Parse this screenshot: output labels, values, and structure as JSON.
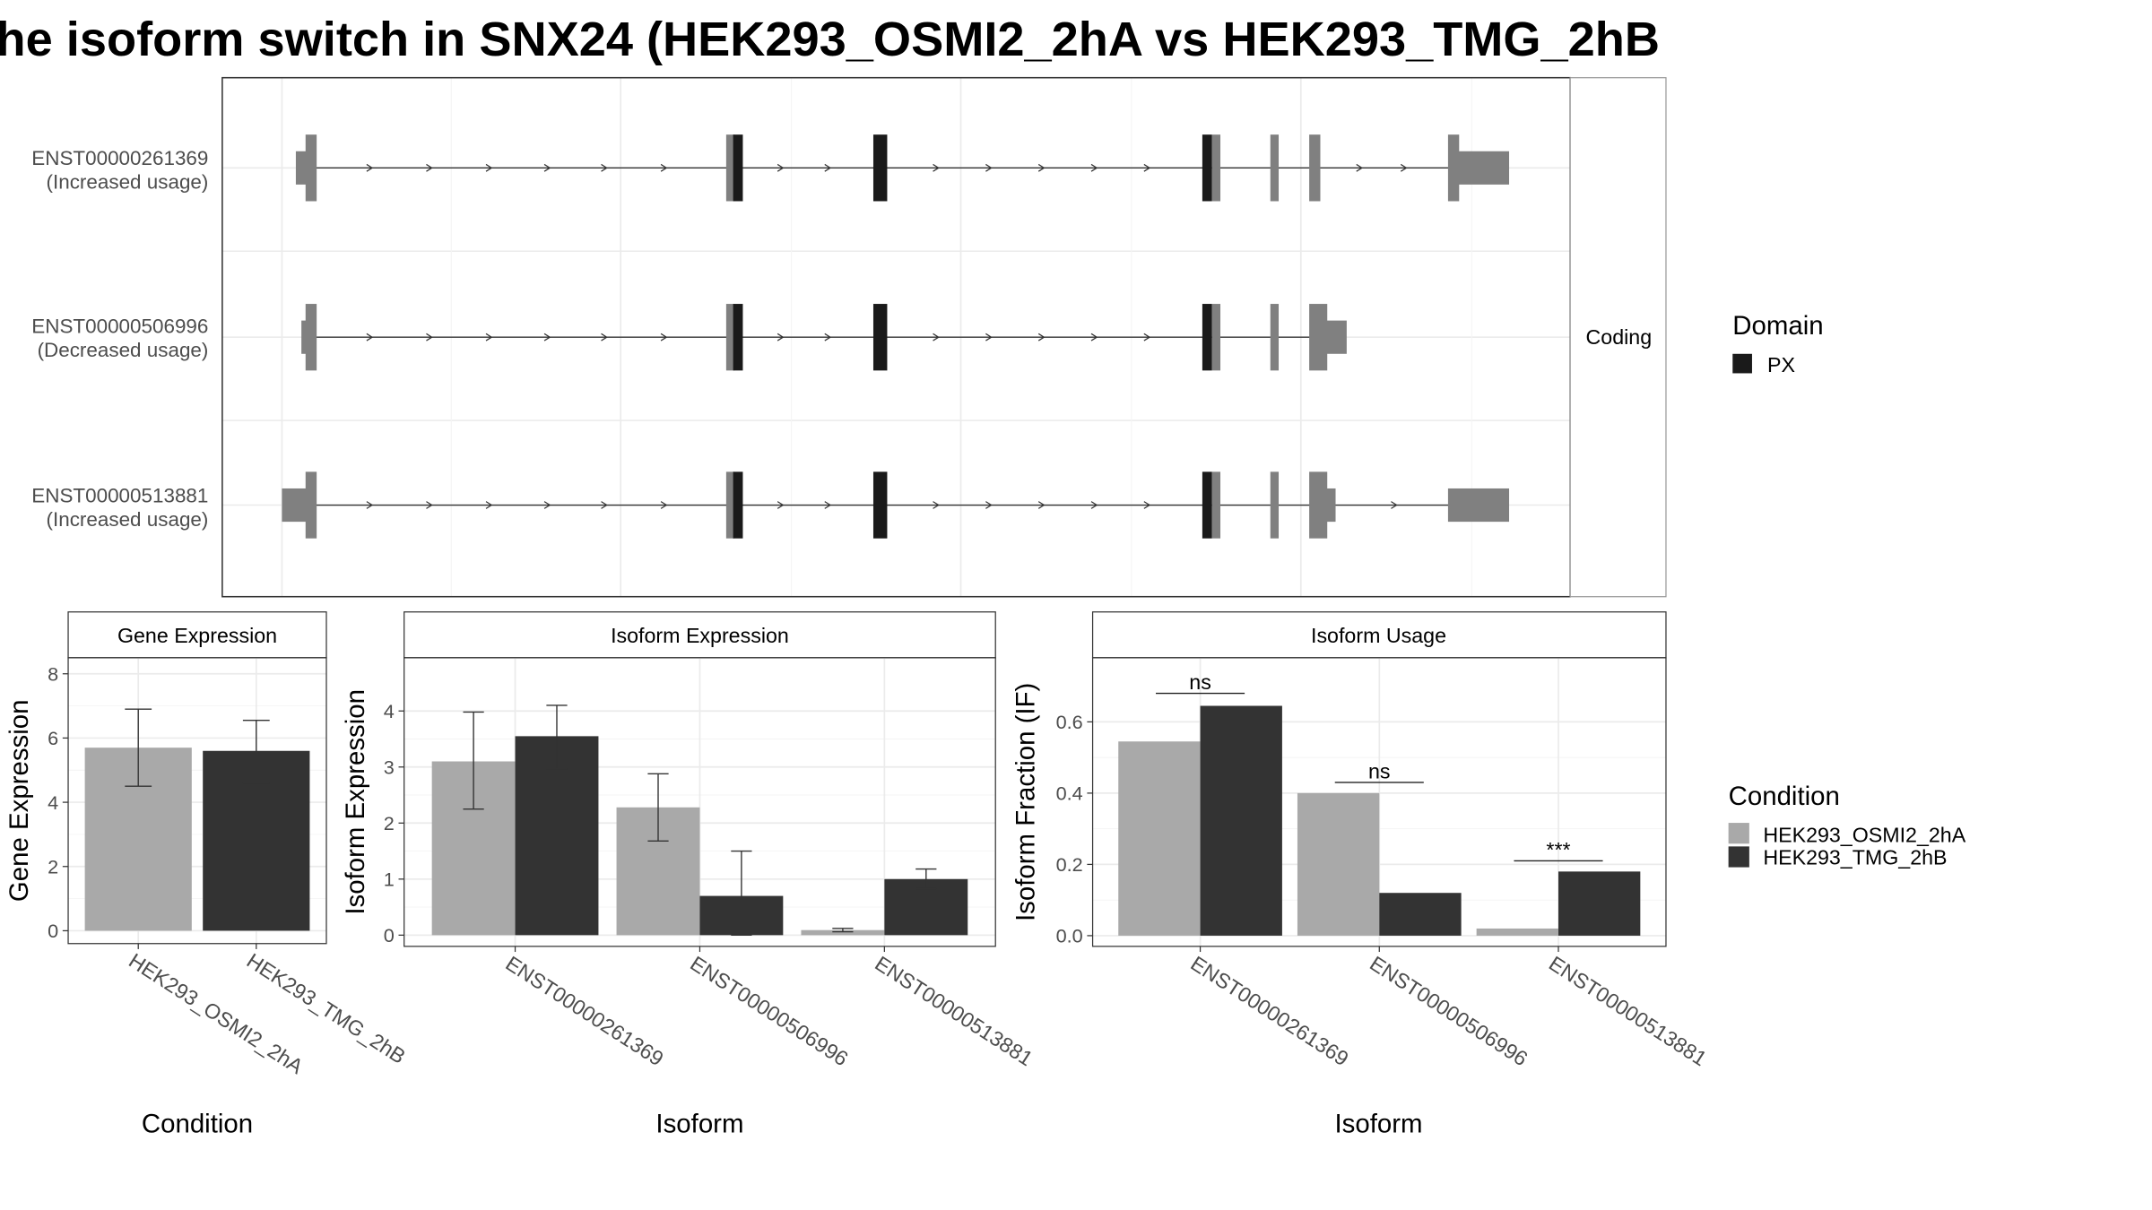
{
  "title": "he isoform switch in SNX24 (HEK293_OSMI2_2hA vs HEK293_TMG_2hB",
  "colors": {
    "condition_a": "#a9a9a9",
    "condition_b": "#333333",
    "utr": "#808080",
    "domain_px": "#1a1a1a"
  },
  "structure": {
    "strip_label": "Coding",
    "transcripts": [
      {
        "id": "ENST00000261369",
        "note": "(Increased usage)"
      },
      {
        "id": "ENST00000506996",
        "note": "(Decreased usage)"
      },
      {
        "id": "ENST00000513881",
        "note": "(Increased usage)"
      }
    ],
    "legend": {
      "title": "Domain",
      "items": [
        {
          "label": "PX",
          "color": "#1a1a1a"
        }
      ]
    }
  },
  "condition_legend": {
    "title": "Condition",
    "items": [
      {
        "label": "HEK293_OSMI2_2hA",
        "color": "#a9a9a9"
      },
      {
        "label": "HEK293_TMG_2hB",
        "color": "#333333"
      }
    ]
  },
  "chart_data": [
    {
      "type": "bar",
      "title": "Gene Expression",
      "xlabel": "Condition",
      "ylabel": "Gene Expression",
      "categories": [
        "HEK293_OSMI2_2hA",
        "HEK293_TMG_2hB"
      ],
      "values": [
        5.7,
        5.6
      ],
      "error_low": [
        4.5,
        4.6
      ],
      "error_high": [
        6.9,
        6.55
      ],
      "ylim": [
        -0.4,
        8.5
      ],
      "yticks": [
        0,
        2,
        4,
        6,
        8
      ],
      "grid": true
    },
    {
      "type": "bar",
      "title": "Isoform Expression",
      "xlabel": "Isoform",
      "ylabel": "Isoform Expression",
      "categories": [
        "ENST00000261369",
        "ENST00000506996",
        "ENST00000513881"
      ],
      "series": [
        {
          "name": "HEK293_OSMI2_2hA",
          "values": [
            3.1,
            2.28,
            0.09
          ],
          "error_low": [
            2.25,
            1.68,
            0.06
          ],
          "error_high": [
            3.98,
            2.88,
            0.12
          ]
        },
        {
          "name": "HEK293_TMG_2hB",
          "values": [
            3.55,
            0.7,
            1.0
          ],
          "error_low": [
            2.97,
            0.0,
            0.83
          ],
          "error_high": [
            4.1,
            1.5,
            1.18
          ]
        }
      ],
      "ylim": [
        -0.2,
        4.95
      ],
      "yticks": [
        0,
        1,
        2,
        3,
        4
      ],
      "grid": true
    },
    {
      "type": "bar",
      "title": "Isoform Usage",
      "xlabel": "Isoform",
      "ylabel": "Isoform Fraction (IF)",
      "categories": [
        "ENST00000261369",
        "ENST00000506996",
        "ENST00000513881"
      ],
      "series": [
        {
          "name": "HEK293_OSMI2_2hA",
          "values": [
            0.545,
            0.4,
            0.02
          ]
        },
        {
          "name": "HEK293_TMG_2hB",
          "values": [
            0.645,
            0.12,
            0.18
          ]
        }
      ],
      "significance": [
        {
          "category": "ENST00000261369",
          "label": "ns",
          "y": 0.68
        },
        {
          "category": "ENST00000506996",
          "label": "ns",
          "y": 0.43
        },
        {
          "category": "ENST00000513881",
          "label": "***",
          "y": 0.21
        }
      ],
      "ylim": [
        -0.03,
        0.78
      ],
      "yticks": [
        0.0,
        0.2,
        0.4,
        0.6
      ],
      "yticklabels": [
        "0.0",
        "0.2",
        "0.4",
        "0.6"
      ],
      "grid": true
    }
  ]
}
